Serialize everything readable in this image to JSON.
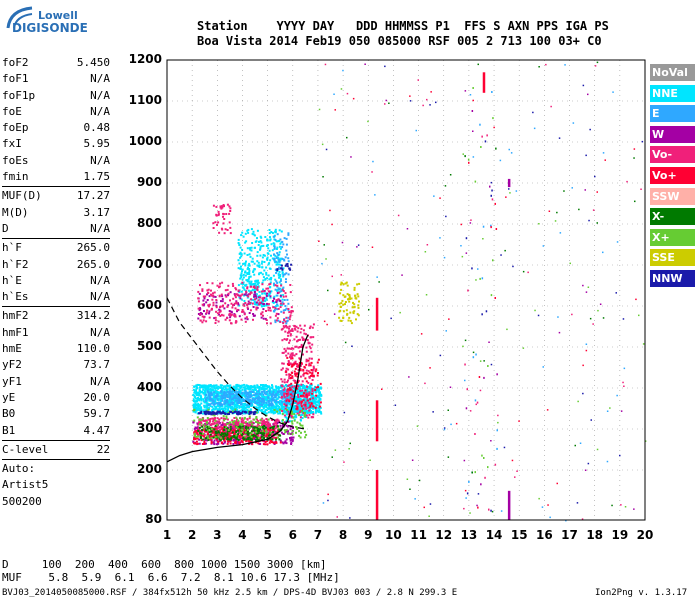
{
  "logo": {
    "top": "Lowell",
    "bottom": "DIGISONDE"
  },
  "header": {
    "line1": "Station    YYYY DAY   DDD HHMMSS P1  FFS S AXN PPS IGA PS",
    "line2": "Boa Vista 2014 Feb19 050 085000 RSF 005 2 713 100 03+ C0"
  },
  "params": [
    {
      "label": "foF2",
      "value": "5.450"
    },
    {
      "label": "foF1",
      "value": "N/A"
    },
    {
      "label": "foF1p",
      "value": "N/A"
    },
    {
      "label": "foE",
      "value": "N/A"
    },
    {
      "label": "foEp",
      "value": "0.48"
    },
    {
      "label": "fxI",
      "value": "5.95"
    },
    {
      "label": "foEs",
      "value": "N/A"
    },
    {
      "label": "fmin",
      "value": "1.75"
    },
    {
      "sep": true
    },
    {
      "label": "MUF(D)",
      "value": "17.27"
    },
    {
      "label": "M(D)",
      "value": "3.17"
    },
    {
      "label": "D",
      "value": "N/A"
    },
    {
      "sep": true
    },
    {
      "label": "h`F",
      "value": "265.0"
    },
    {
      "label": "h`F2",
      "value": "265.0"
    },
    {
      "label": "h`E",
      "value": "N/A"
    },
    {
      "label": "h`Es",
      "value": "N/A"
    },
    {
      "sep": true
    },
    {
      "label": "hmF2",
      "value": "314.2"
    },
    {
      "label": "hmF1",
      "value": "N/A"
    },
    {
      "label": "hmE",
      "value": "110.0"
    },
    {
      "label": "yF2",
      "value": "73.7"
    },
    {
      "label": "yF1",
      "value": "N/A"
    },
    {
      "label": "yE",
      "value": "20.0"
    },
    {
      "label": "B0",
      "value": "59.7"
    },
    {
      "label": "B1",
      "value": "4.47"
    },
    {
      "sep": true
    },
    {
      "label": "C-level",
      "value": "22"
    },
    {
      "sep": true
    },
    {
      "label": "Auto:",
      "value": ""
    },
    {
      "label": "Artist5",
      "value": ""
    },
    {
      "label": "500200",
      "value": ""
    }
  ],
  "legend": [
    {
      "label": "NoVal",
      "color": "#999999"
    },
    {
      "label": "NNE",
      "color": "#00e5ff"
    },
    {
      "label": "E",
      "color": "#2fa8ff"
    },
    {
      "label": "W",
      "color": "#a400a4"
    },
    {
      "label": "Vo-",
      "color": "#f0207a"
    },
    {
      "label": "Vo+",
      "color": "#ff0033"
    },
    {
      "label": "SSW",
      "color": "#ffb0a8"
    },
    {
      "label": "X-",
      "color": "#007a00"
    },
    {
      "label": "X+",
      "color": "#66cc33"
    },
    {
      "label": "SSE",
      "color": "#cccc00"
    },
    {
      "label": "NNW",
      "color": "#1a1aaa"
    }
  ],
  "footer": {
    "d_line": "D     100  200  400  600  800 1000 1500 3000 [km]",
    "muf_line": "MUF    5.8  5.9  6.1  6.6  7.2  8.1 10.6 17.3 [MHz]",
    "bottom_left": "BVJ03_2014050085000.RSF / 384fx512h 50 kHz 2.5 km / DPS-4D BVJ03 003 / 2.8 N 299.3 E",
    "bottom_right": "Ion2Png v. 1.3.17"
  },
  "chart_data": {
    "type": "scatter",
    "x_ticks": [
      "1",
      "2",
      "3",
      "4",
      "5",
      "6",
      "7",
      "8",
      "9",
      "10",
      "11",
      "12",
      "13",
      "14",
      "15",
      "16",
      "17",
      "18",
      "19",
      "20"
    ],
    "y_ticks": [
      "80",
      "200",
      "300",
      "400",
      "500",
      "600",
      "700",
      "800",
      "900",
      "1000",
      "1100",
      "1200"
    ],
    "xlim": [
      1,
      20
    ],
    "ylim": [
      80,
      1200
    ],
    "grid": true,
    "series": [
      {
        "name": "NNE",
        "color": "#00e5ff",
        "clusters": [
          {
            "x": [
              2.0,
              7.1
            ],
            "y": [
              340,
              410
            ],
            "n": 1500
          },
          {
            "x": [
              3.8,
              5.6
            ],
            "y": [
              600,
              790
            ],
            "n": 380
          },
          {
            "x": [
              5.5,
              6.5
            ],
            "y": [
              320,
              400
            ],
            "n": 150
          }
        ]
      },
      {
        "name": "E",
        "color": "#2fa8ff",
        "clusters": [
          {
            "x": [
              2.5,
              6.0
            ],
            "y": [
              360,
              395
            ],
            "n": 300
          },
          {
            "x": [
              5.2,
              5.8
            ],
            "y": [
              560,
              780
            ],
            "n": 80
          }
        ]
      },
      {
        "name": "W",
        "color": "#a400a4",
        "clusters": [
          {
            "x": [
              2.0,
              6.0
            ],
            "y": [
              265,
              320
            ],
            "n": 300
          },
          {
            "x": [
              2.2,
              5.5
            ],
            "y": [
              570,
              640
            ],
            "n": 110
          }
        ]
      },
      {
        "name": "Vo-",
        "color": "#f0207a",
        "clusters": [
          {
            "x": [
              2.2,
              5.4
            ],
            "y": [
              280,
              330
            ],
            "n": 360
          },
          {
            "x": [
              2.2,
              6.0
            ],
            "y": [
              560,
              660
            ],
            "n": 220
          },
          {
            "x": [
              2.8,
              3.5
            ],
            "y": [
              780,
              850
            ],
            "n": 40
          },
          {
            "x": [
              5.5,
              6.8
            ],
            "y": [
              330,
              560
            ],
            "n": 280
          }
        ]
      },
      {
        "name": "Vo+",
        "color": "#ff0033",
        "clusters": [
          {
            "x": [
              2.0,
              5.5
            ],
            "y": [
              265,
              305
            ],
            "n": 200
          },
          {
            "x": [
              5.7,
              7.1
            ],
            "y": [
              350,
              480
            ],
            "n": 100
          }
        ]
      },
      {
        "name": "X-",
        "color": "#007a00",
        "clusters": [
          {
            "x": [
              2.2,
              5.5
            ],
            "y": [
              275,
              310
            ],
            "n": 200
          }
        ]
      },
      {
        "name": "X+",
        "color": "#66cc33",
        "clusters": [
          {
            "x": [
              2.0,
              6.5
            ],
            "y": [
              280,
              350
            ],
            "n": 150
          }
        ]
      },
      {
        "name": "SSE",
        "color": "#cccc00",
        "clusters": [
          {
            "x": [
              7.8,
              8.6
            ],
            "y": [
              560,
              660
            ],
            "n": 70
          }
        ]
      },
      {
        "name": "NNW",
        "color": "#1a1aaa",
        "clusters": [
          {
            "x": [
              5.3,
              5.9
            ],
            "y": [
              690,
              705
            ],
            "n": 14
          },
          {
            "x": [
              2.2,
              4.5
            ],
            "y": [
              338,
              345
            ],
            "n": 80
          }
        ]
      }
    ],
    "vertical_marks": [
      {
        "x": 9.35,
        "y": [
          80,
          200
        ],
        "color": "#ff0033"
      },
      {
        "x": 9.35,
        "y": [
          270,
          370
        ],
        "color": "#ff0033"
      },
      {
        "x": 9.35,
        "y": [
          540,
          620
        ],
        "color": "#ff0033"
      },
      {
        "x": 13.6,
        "y": [
          1120,
          1170
        ],
        "color": "#ff0033"
      },
      {
        "x": 14.6,
        "y": [
          80,
          150
        ],
        "color": "#a400a4"
      },
      {
        "x": 14.6,
        "y": [
          890,
          910
        ],
        "color": "#a400a4"
      }
    ],
    "trace_curve": {
      "name": "profile",
      "color": "#000000",
      "points": [
        [
          1.0,
          220
        ],
        [
          1.5,
          235
        ],
        [
          2.0,
          245
        ],
        [
          3.0,
          255
        ],
        [
          4.0,
          262
        ],
        [
          5.0,
          275
        ],
        [
          5.5,
          295
        ],
        [
          5.8,
          320
        ],
        [
          6.0,
          360
        ],
        [
          6.2,
          420
        ],
        [
          6.4,
          500
        ],
        [
          6.6,
          530
        ]
      ]
    },
    "dashed_curve": {
      "name": "model",
      "color": "#000000",
      "points": [
        [
          1.0,
          620
        ],
        [
          1.5,
          560
        ],
        [
          2.0,
          520
        ],
        [
          2.5,
          480
        ],
        [
          3.0,
          440
        ],
        [
          3.5,
          405
        ],
        [
          4.0,
          375
        ],
        [
          4.5,
          350
        ],
        [
          5.0,
          330
        ],
        [
          5.5,
          315
        ],
        [
          6.0,
          305
        ],
        [
          6.5,
          300
        ]
      ]
    }
  }
}
